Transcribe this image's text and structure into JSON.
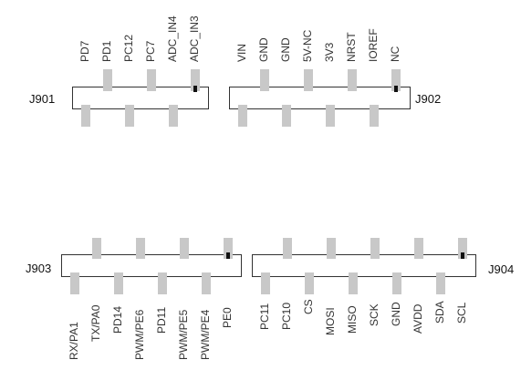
{
  "colors": {
    "pin": "#c8c8c8",
    "outline": "#333333",
    "marker": "#111111"
  },
  "headers": {
    "j901": {
      "name": "J901",
      "pin_labels": [
        "PD7",
        "PD1",
        "PC12",
        "PC7",
        "ADC_IN4",
        "ADC_IN3"
      ]
    },
    "j902": {
      "name": "J902",
      "pin_labels": [
        "VIN",
        "GND",
        "GND",
        "5V-NC",
        "3V3",
        "NRST",
        "IOREF",
        "NC"
      ]
    },
    "j903": {
      "name": "J903",
      "pin_labels": [
        "RX/PA1",
        "TX/PA0",
        "PD14",
        "PWM/PE6",
        "PD11",
        "PWM/PE5",
        "PWM/PE4",
        "PE0"
      ]
    },
    "j904": {
      "name": "J904",
      "pin_labels": [
        "PC11",
        "PC10",
        "CS",
        "MOSI",
        "MISO",
        "SCK",
        "GND",
        "AVDD",
        "SDA",
        "SCL"
      ]
    }
  }
}
